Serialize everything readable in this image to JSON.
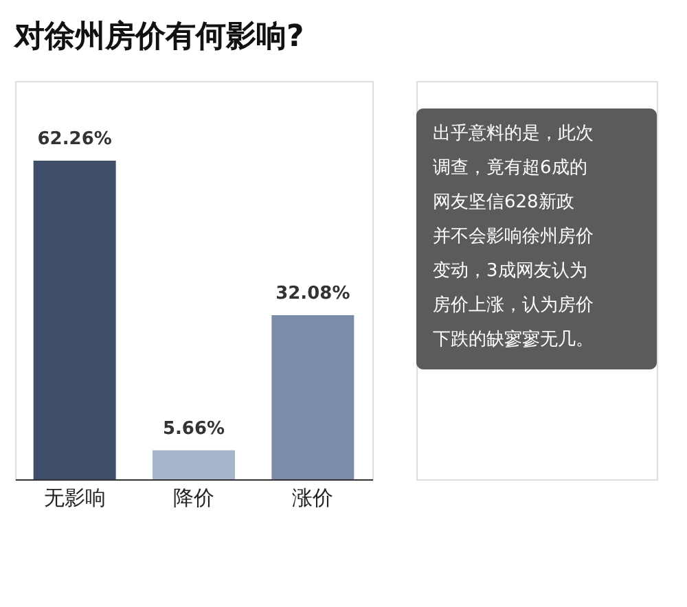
{
  "chart_data": {
    "type": "bar",
    "title": "对徐州房价有何影响?",
    "categories": [
      "无影响",
      "降价",
      "涨价"
    ],
    "values": [
      62.26,
      5.66,
      32.08
    ],
    "value_labels": [
      "62.26%",
      "5.66%",
      "32.08%"
    ],
    "colors": [
      "#3e4e68",
      "#a8b6cb",
      "#7b8ca8"
    ],
    "annotations": [
      "出乎意料的是，此次调查，竟有超6成的网友坚信628新政并不会影响徐州房价变动，3成网友认为房价上涨，认为房价下跌的缺寥寥无几。"
    ],
    "grid": false
  }
}
